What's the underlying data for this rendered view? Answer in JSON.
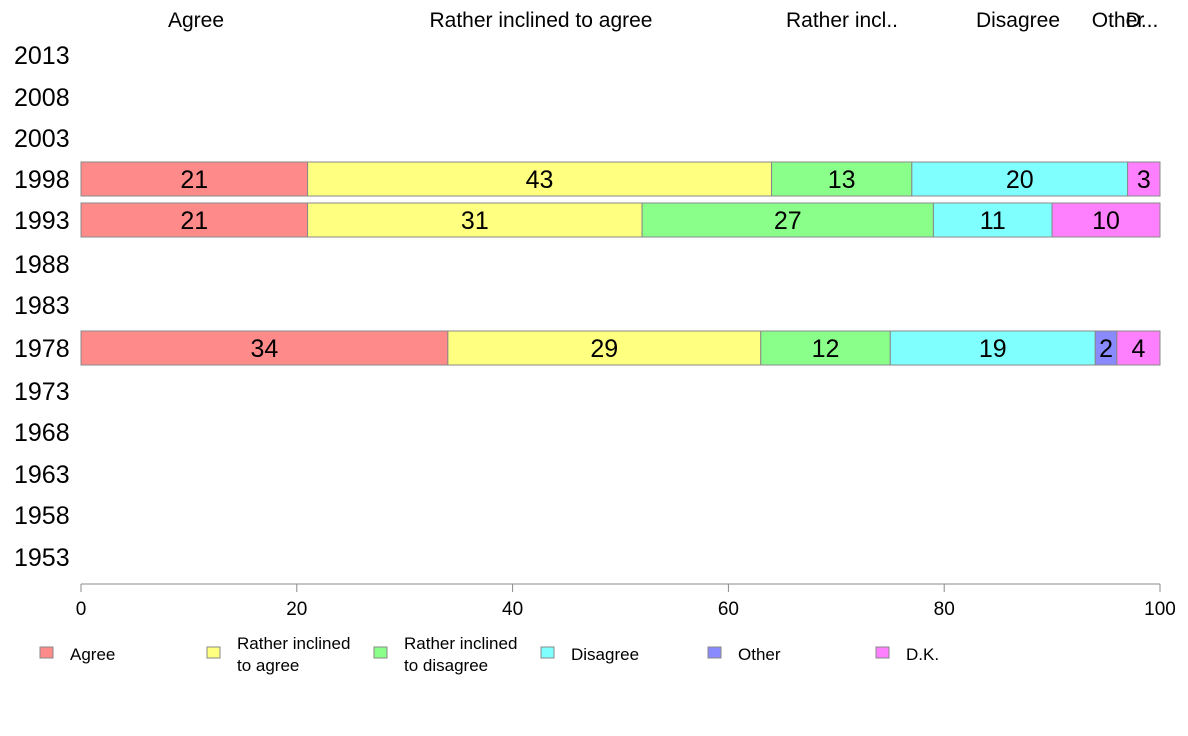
{
  "chart_data": {
    "type": "bar",
    "orientation": "horizontal",
    "stacked": true,
    "xlim": [
      0,
      100
    ],
    "xticks": [
      0,
      20,
      40,
      60,
      80,
      100
    ],
    "categories": [
      "2013",
      "2008",
      "2003",
      "1998",
      "1993",
      "1988",
      "1983",
      "1978",
      "1973",
      "1968",
      "1963",
      "1958",
      "1953"
    ],
    "top_labels": [
      "Agree",
      "Rather inclined to agree",
      "Rather incl..",
      "Disagree",
      "Other",
      "D..."
    ],
    "series": [
      {
        "name": "Agree",
        "color": "#ff8a8a",
        "values": [
          null,
          null,
          null,
          21,
          21,
          null,
          null,
          34,
          null,
          null,
          null,
          null,
          null
        ]
      },
      {
        "name": "Rather inclined to agree",
        "color": "#ffff80",
        "values": [
          null,
          null,
          null,
          43,
          31,
          null,
          null,
          29,
          null,
          null,
          null,
          null,
          null
        ]
      },
      {
        "name": "Rather inclined to disagree",
        "color": "#8aff8a",
        "values": [
          null,
          null,
          null,
          13,
          27,
          null,
          null,
          12,
          null,
          null,
          null,
          null,
          null
        ]
      },
      {
        "name": "Disagree",
        "color": "#80ffff",
        "values": [
          null,
          null,
          null,
          20,
          11,
          null,
          null,
          19,
          null,
          null,
          null,
          null,
          null
        ]
      },
      {
        "name": "Other",
        "color": "#8a8aff",
        "values": [
          null,
          null,
          null,
          0,
          0,
          null,
          null,
          2,
          null,
          null,
          null,
          null,
          null
        ]
      },
      {
        "name": "D.K.",
        "color": "#ff80ff",
        "values": [
          null,
          null,
          null,
          3,
          10,
          null,
          null,
          4,
          null,
          null,
          null,
          null,
          null
        ]
      }
    ],
    "legend": {
      "placement": "bottom",
      "items": [
        {
          "lines": [
            "Agree"
          ],
          "color": "#ff8a8a"
        },
        {
          "lines": [
            "Rather inclined",
            "to agree"
          ],
          "color": "#ffff80"
        },
        {
          "lines": [
            "Rather inclined",
            "to disagree"
          ],
          "color": "#8aff8a"
        },
        {
          "lines": [
            "Disagree"
          ],
          "color": "#80ffff"
        },
        {
          "lines": [
            "Other"
          ],
          "color": "#8a8aff"
        },
        {
          "lines": [
            "D.K."
          ],
          "color": "#ff80ff"
        }
      ]
    }
  }
}
